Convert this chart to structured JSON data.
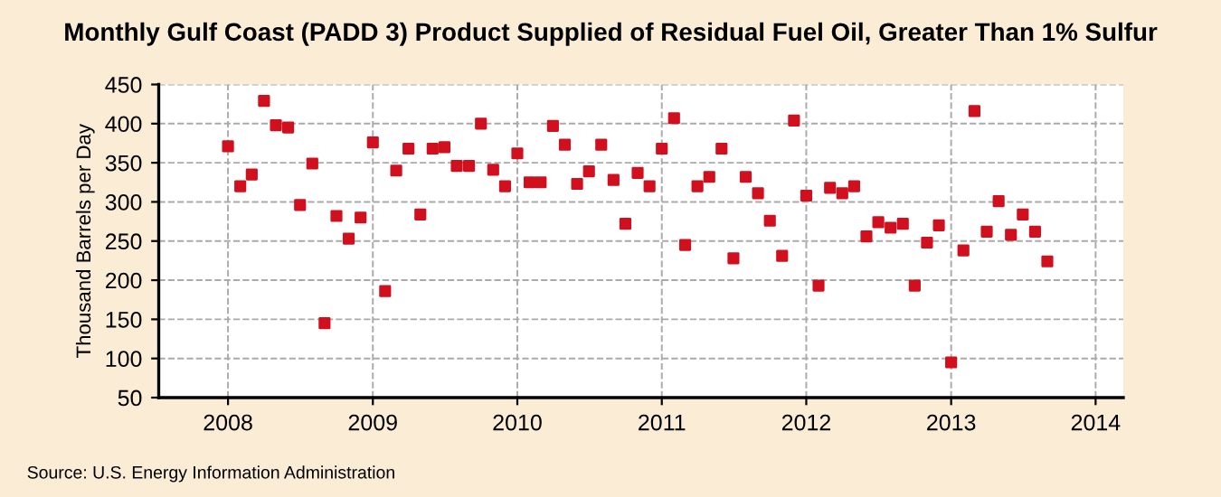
{
  "chart_data": {
    "type": "scatter",
    "title": "Monthly Gulf Coast (PADD 3) Product Supplied of Residual Fuel Oil, Greater Than 1% Sulfur",
    "ylabel": "Thousand Barrels per Day",
    "annotations": [
      "Source: U.S. Energy Information Administration"
    ],
    "x": [
      "2008-01",
      "2008-02",
      "2008-03",
      "2008-04",
      "2008-05",
      "2008-06",
      "2008-07",
      "2008-08",
      "2008-09",
      "2008-10",
      "2008-11",
      "2008-12",
      "2009-01",
      "2009-02",
      "2009-03",
      "2009-04",
      "2009-05",
      "2009-06",
      "2009-07",
      "2009-08",
      "2009-09",
      "2009-10",
      "2009-11",
      "2009-12",
      "2010-01",
      "2010-02",
      "2010-03",
      "2010-04",
      "2010-05",
      "2010-06",
      "2010-07",
      "2010-08",
      "2010-09",
      "2010-10",
      "2010-11",
      "2010-12",
      "2011-01",
      "2011-02",
      "2011-03",
      "2011-04",
      "2011-05",
      "2011-06",
      "2011-07",
      "2011-08",
      "2011-09",
      "2011-10",
      "2011-11",
      "2011-12",
      "2012-01",
      "2012-02",
      "2012-03",
      "2012-04",
      "2012-05",
      "2012-06",
      "2012-07",
      "2012-08",
      "2012-09",
      "2012-10",
      "2012-11",
      "2012-12",
      "2013-01",
      "2013-02",
      "2013-03",
      "2013-04",
      "2013-05",
      "2013-06",
      "2013-07",
      "2013-08",
      "2013-09"
    ],
    "series": [
      {
        "color": "#d0101e",
        "values": [
          371,
          320,
          335,
          429,
          398,
          395,
          296,
          349,
          145,
          282,
          253,
          280,
          376,
          186,
          340,
          368,
          284,
          368,
          370,
          346,
          346,
          400,
          341,
          320,
          362,
          325,
          325,
          397,
          373,
          323,
          339,
          373,
          328,
          272,
          337,
          320,
          368,
          407,
          245,
          320,
          332,
          368,
          228,
          332,
          311,
          276,
          231,
          404,
          308,
          193,
          318,
          311,
          320,
          256,
          274,
          267,
          272,
          193,
          248,
          270,
          95,
          238,
          416,
          262,
          301,
          258,
          284,
          262,
          224
        ]
      }
    ],
    "marker": "square",
    "xlim": [
      "2007-07-10",
      "2014-03-12"
    ],
    "xticks": [
      "2008",
      "2009",
      "2010",
      "2011",
      "2012",
      "2013",
      "2014"
    ],
    "ylim": [
      50,
      450
    ],
    "yticks": [
      50,
      100,
      150,
      200,
      250,
      300,
      350,
      400,
      450
    ],
    "grid": true,
    "legend": false
  }
}
